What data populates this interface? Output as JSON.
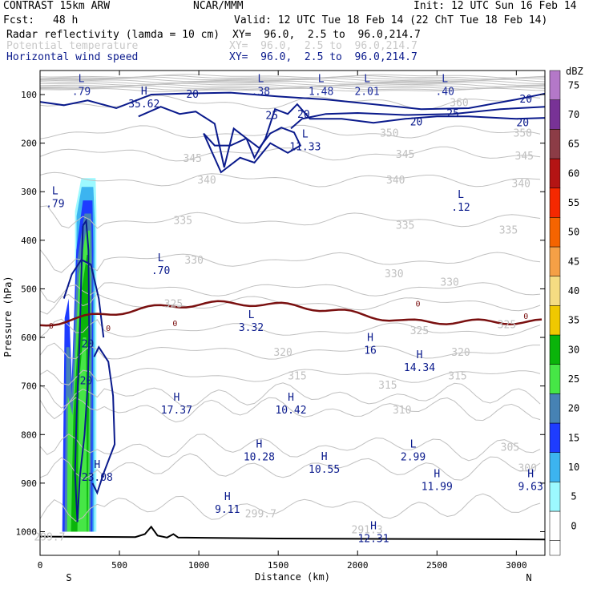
{
  "header": {
    "model": "CONTRAST 15km ARW",
    "org": "NCAR/MMM",
    "init": "Init: 12 UTC Sun 16 Feb 14",
    "fcst_label": "Fcst:",
    "fcst_value": "48 h",
    "valid": "Valid: 12 UTC Tue 18 Feb 14 (22 ChT Tue 18 Feb 14)",
    "field1": "Radar reflectivity (lamda = 10 cm)",
    "field2": "Potential temperature",
    "field3": "Horizontal wind speed",
    "xy": "XY=  96.0,  2.5 to  96.0,214.7",
    "xy2": "XY=  96.0,  2.5 to  96.0,214.7"
  },
  "colors": {
    "wind": "#0a1a8c",
    "theta": "#c0c0c0",
    "freezing": "#7a1010",
    "terrain": "#000000"
  },
  "chart_data": {
    "type": "cross-section",
    "xlabel": "Distance (km)",
    "ylabel": "Pressure (hPa)",
    "xlim": [
      0,
      3180
    ],
    "ylim": [
      1050,
      50
    ],
    "x_ticks": [
      "0",
      "500",
      "1000",
      "1500",
      "2000",
      "2500",
      "3000"
    ],
    "y_ticks": [
      "100",
      "200",
      "300",
      "400",
      "500",
      "600",
      "700",
      "800",
      "900",
      "1000"
    ],
    "x_tick_values": [
      0,
      500,
      1000,
      1500,
      2000,
      2500,
      3000
    ],
    "y_tick_values": [
      100,
      200,
      300,
      400,
      500,
      600,
      700,
      800,
      900,
      1000
    ],
    "end_labels": {
      "left": "S",
      "right": "N"
    },
    "colorbar": {
      "unit": "dBZ",
      "levels": [
        "0",
        "5",
        "10",
        "15",
        "20",
        "25",
        "30",
        "35",
        "40",
        "45",
        "50",
        "55",
        "60",
        "65",
        "70",
        "75"
      ],
      "colors": [
        "#ffffff",
        "#9cf9ff",
        "#3cb4f0",
        "#1e3cff",
        "#4682b4",
        "#46e646",
        "#0ab40a",
        "#f0c800",
        "#f5dc82",
        "#f5a046",
        "#f56400",
        "#f52800",
        "#b41414",
        "#8c3c46",
        "#783296",
        "#b478c8"
      ]
    },
    "theta_labels": [
      {
        "text": "360",
        "x": 2640,
        "p": 116
      },
      {
        "text": "350",
        "x": 2200,
        "p": 178
      },
      {
        "text": "350",
        "x": 3040,
        "p": 178
      },
      {
        "text": "345",
        "x": 2300,
        "p": 222
      },
      {
        "text": "345",
        "x": 3050,
        "p": 225
      },
      {
        "text": "345",
        "x": 960,
        "p": 230
      },
      {
        "text": "340",
        "x": 1050,
        "p": 275
      },
      {
        "text": "340",
        "x": 2240,
        "p": 275
      },
      {
        "text": "340",
        "x": 3030,
        "p": 282
      },
      {
        "text": "335",
        "x": 900,
        "p": 358
      },
      {
        "text": "335",
        "x": 2300,
        "p": 368
      },
      {
        "text": "335",
        "x": 2950,
        "p": 378
      },
      {
        "text": "330",
        "x": 970,
        "p": 440
      },
      {
        "text": "330",
        "x": 2230,
        "p": 468
      },
      {
        "text": "330",
        "x": 2580,
        "p": 485
      },
      {
        "text": "325",
        "x": 840,
        "p": 530
      },
      {
        "text": "325",
        "x": 2390,
        "p": 585
      },
      {
        "text": "325",
        "x": 2940,
        "p": 573
      },
      {
        "text": "320",
        "x": 1530,
        "p": 630
      },
      {
        "text": "320",
        "x": 2650,
        "p": 630
      },
      {
        "text": "315",
        "x": 1620,
        "p": 678
      },
      {
        "text": "315",
        "x": 2190,
        "p": 697
      },
      {
        "text": "315",
        "x": 2630,
        "p": 678
      },
      {
        "text": "310",
        "x": 2280,
        "p": 748
      },
      {
        "text": "305",
        "x": 2960,
        "p": 825
      },
      {
        "text": "300",
        "x": 3070,
        "p": 868
      },
      {
        "text": "299.7",
        "x": 1390,
        "p": 962
      },
      {
        "text": "299.7",
        "x": 60,
        "p": 1010
      },
      {
        "text": "291.3",
        "x": 2060,
        "p": 995
      }
    ],
    "wind_labels": [
      {
        "text": "20",
        "x": 960,
        "p": 98
      },
      {
        "text": "25",
        "x": 1460,
        "p": 142
      },
      {
        "text": "20",
        "x": 1660,
        "p": 140
      },
      {
        "text": "20",
        "x": 2370,
        "p": 155
      },
      {
        "text": "25",
        "x": 2600,
        "p": 138
      },
      {
        "text": "20",
        "x": 3060,
        "p": 108
      },
      {
        "text": "20",
        "x": 3040,
        "p": 157
      },
      {
        "text": "20",
        "x": 300,
        "p": 612
      },
      {
        "text": "20",
        "x": 290,
        "p": 688
      }
    ],
    "extrema": [
      {
        "kind": "L",
        "value": ".79",
        "x": 260,
        "p": 84
      },
      {
        "kind": "L",
        "value": ".38",
        "x": 1390,
        "p": 84
      },
      {
        "kind": "L",
        "value": "1.48",
        "x": 1770,
        "p": 84
      },
      {
        "kind": "L",
        "value": "2.01",
        "x": 2060,
        "p": 84
      },
      {
        "kind": "L",
        "value": ".40",
        "x": 2550,
        "p": 84
      },
      {
        "kind": "H",
        "value": "35.62",
        "x": 655,
        "p": 110
      },
      {
        "kind": "L",
        "value": "11.33",
        "x": 1670,
        "p": 198
      },
      {
        "kind": "L",
        "value": ".79",
        "x": 95,
        "p": 315
      },
      {
        "kind": "L",
        "value": ".12",
        "x": 2650,
        "p": 323
      },
      {
        "kind": "L",
        "value": ".70",
        "x": 760,
        "p": 453
      },
      {
        "kind": "L",
        "value": "3.32",
        "x": 1330,
        "p": 570
      },
      {
        "kind": "H",
        "value": "16",
        "x": 2080,
        "p": 617
      },
      {
        "kind": "H",
        "value": "14.34",
        "x": 2390,
        "p": 653
      },
      {
        "kind": "H",
        "value": "17.37",
        "x": 860,
        "p": 740
      },
      {
        "kind": "H",
        "value": "10.42",
        "x": 1580,
        "p": 740
      },
      {
        "kind": "H",
        "value": "10.28",
        "x": 1380,
        "p": 837
      },
      {
        "kind": "L",
        "value": "2.99",
        "x": 2350,
        "p": 837
      },
      {
        "kind": "H",
        "value": "23.08",
        "x": 360,
        "p": 879
      },
      {
        "kind": "H",
        "value": "10.55",
        "x": 1790,
        "p": 862
      },
      {
        "kind": "H",
        "value": "11.99",
        "x": 2500,
        "p": 898
      },
      {
        "kind": "H",
        "value": "9.63",
        "x": 3090,
        "p": 898
      },
      {
        "kind": "H",
        "value": "9.11",
        "x": 1180,
        "p": 945
      },
      {
        "kind": "H",
        "value": "12.31",
        "x": 2100,
        "p": 1005
      }
    ],
    "freezing_label": "0",
    "terrain_p": 1012
  }
}
